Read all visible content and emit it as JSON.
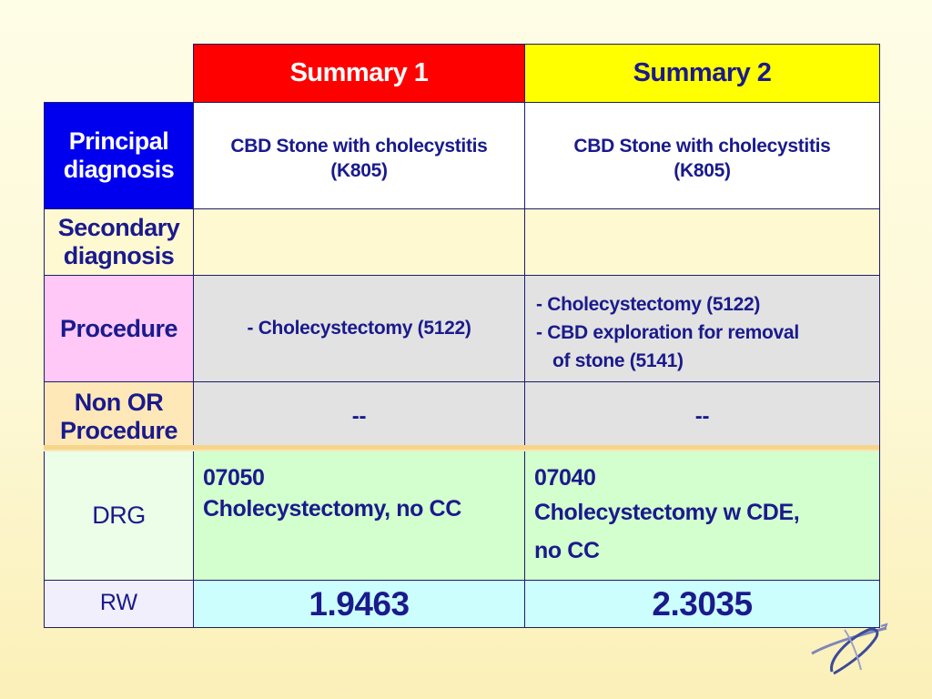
{
  "table": {
    "headers": [
      "Summary 1",
      "Summary 2"
    ],
    "rows": [
      {
        "label": "Principal diagnosis",
        "label_lines": [
          "Principal",
          "diagnosis"
        ],
        "summary1": [
          "CBD Stone with cholecystitis",
          "(K805)"
        ],
        "summary2": [
          "CBD Stone with cholecystitis",
          "(K805)"
        ]
      },
      {
        "label": "Secondary diagnosis",
        "label_lines": [
          "Secondary",
          "diagnosis"
        ],
        "summary1": "",
        "summary2": ""
      },
      {
        "label": "Procedure",
        "summary1": "- Cholecystectomy (5122)",
        "summary2": [
          "- Cholecystectomy (5122)",
          "- CBD exploration for removal",
          "of stone (5141)"
        ]
      },
      {
        "label": "Non OR Procedure",
        "label_lines": [
          "Non OR",
          "Procedure"
        ],
        "summary1": "--",
        "summary2": "--"
      },
      {
        "label": "DRG",
        "summary1": {
          "code": "07050",
          "title": "Cholecystectomy, no CC"
        },
        "summary2": {
          "code": "07040",
          "title_lines": [
            "Cholecystectomy w CDE,",
            "no CC"
          ]
        }
      },
      {
        "label": "RW",
        "summary1": "1.9463",
        "summary2": "2.3035"
      }
    ]
  },
  "colors": {
    "summary1_header": "#ff0000",
    "summary2_header": "#ffff00",
    "principal_label": "#0000ee",
    "procedure_label": "#ffc8f7",
    "drg_cells": "#d3ffce",
    "rw_cells": "#ccfefe",
    "text": "#1a1a8c"
  },
  "icons": {
    "logo": "swirl-logo-icon"
  }
}
